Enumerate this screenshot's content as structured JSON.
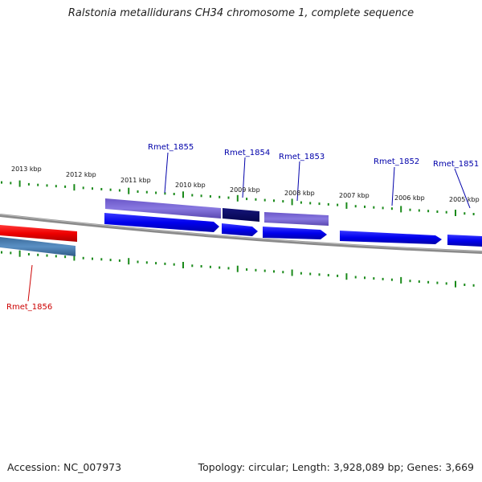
{
  "title": "Ralstonia metallidurans CH34 chromosome 1, complete sequence",
  "footer": {
    "accession": "Accession: NC_007973",
    "summary": "Topology: circular; Length: 3,928,089 bp; Genes: 3,669"
  },
  "colors": {
    "background": "#ffffff",
    "backbone": "#808080",
    "ticks": "#1a8a1a",
    "gene_forward": "#0000ee",
    "gene_reverse": "#ee0000",
    "cog_light_purple": "#7b68d8",
    "cog_dark_navy": "#0a0a6e",
    "cog_steel_blue": "#4a7fb5",
    "label_forward": "#0000aa",
    "label_reverse": "#cc0000"
  },
  "scale": {
    "unit": "kbp",
    "labels": [
      "2013 kbp",
      "2012 kbp",
      "2011 kbp",
      "2010 kbp",
      "2009 kbp",
      "2008 kbp",
      "2007 kbp",
      "2006 kbp",
      "2005 kbp"
    ]
  },
  "genes": [
    {
      "id": "Rmet_1856",
      "strand": "reverse"
    },
    {
      "id": "Rmet_1855",
      "strand": "forward"
    },
    {
      "id": "Rmet_1854",
      "strand": "forward"
    },
    {
      "id": "Rmet_1853",
      "strand": "forward"
    },
    {
      "id": "Rmet_1852",
      "strand": "forward"
    },
    {
      "id": "Rmet_1851",
      "strand": "forward"
    }
  ]
}
